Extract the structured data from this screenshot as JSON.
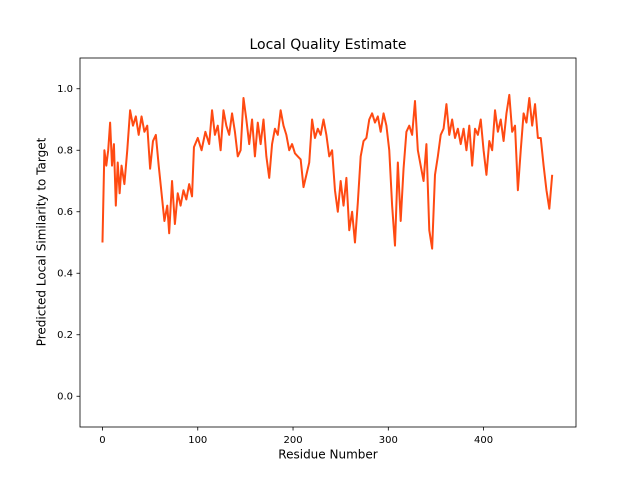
{
  "chart_data": {
    "type": "line",
    "title": "Local Quality Estimate",
    "xlabel": "Residue Number",
    "ylabel": "Predicted Local Similarity to Target",
    "color": "#ff4a12",
    "xlim": [
      -23.6,
      497
    ],
    "ylim": [
      -0.1,
      1.1
    ],
    "xticks": [
      0,
      100,
      200,
      300,
      400
    ],
    "yticks": [
      {
        "value": 0,
        "label": "0.0"
      },
      0.2,
      0.4,
      0.6,
      0.8,
      {
        "value": 1,
        "label": "1.0"
      }
    ],
    "x": [
      0,
      2,
      4,
      6,
      8,
      10,
      12,
      14,
      16,
      18,
      20,
      23,
      26,
      29,
      32,
      35,
      38,
      41,
      44,
      47,
      50,
      53,
      56,
      59,
      62,
      65,
      68,
      70,
      73,
      76,
      79,
      82,
      85,
      88,
      91,
      94,
      96,
      100,
      104,
      108,
      112,
      115,
      118,
      121,
      124,
      127,
      130,
      133,
      136,
      139,
      142,
      145,
      148,
      151,
      154,
      157,
      160,
      163,
      166,
      169,
      172,
      175,
      178,
      181,
      184,
      187,
      190,
      193,
      196,
      199,
      202,
      205,
      208,
      211,
      214,
      217,
      220,
      223,
      226,
      229,
      232,
      235,
      238,
      241,
      244,
      247,
      250,
      253,
      256,
      259,
      262,
      265,
      268,
      271,
      274,
      277,
      280,
      283,
      286,
      289,
      292,
      295,
      298,
      301,
      304,
      307,
      310,
      313,
      316,
      319,
      322,
      325,
      328,
      331,
      334,
      337,
      340,
      343,
      346,
      349,
      352,
      355,
      358,
      361,
      364,
      367,
      370,
      373,
      376,
      379,
      382,
      385,
      388,
      391,
      394,
      397,
      400,
      403,
      406,
      409,
      412,
      415,
      418,
      421,
      424,
      427,
      430,
      433,
      436,
      439,
      442,
      445,
      448,
      451,
      454,
      457,
      460,
      463,
      466,
      469,
      472
    ],
    "values": [
      0.5,
      0.8,
      0.75,
      0.8,
      0.89,
      0.75,
      0.82,
      0.62,
      0.76,
      0.66,
      0.75,
      0.69,
      0.8,
      0.93,
      0.88,
      0.91,
      0.85,
      0.91,
      0.86,
      0.88,
      0.74,
      0.83,
      0.85,
      0.75,
      0.66,
      0.57,
      0.62,
      0.53,
      0.7,
      0.56,
      0.66,
      0.62,
      0.67,
      0.64,
      0.69,
      0.65,
      0.81,
      0.84,
      0.8,
      0.86,
      0.82,
      0.93,
      0.85,
      0.88,
      0.8,
      0.93,
      0.88,
      0.85,
      0.92,
      0.86,
      0.78,
      0.8,
      0.97,
      0.9,
      0.82,
      0.9,
      0.78,
      0.89,
      0.82,
      0.9,
      0.78,
      0.71,
      0.82,
      0.87,
      0.85,
      0.93,
      0.88,
      0.85,
      0.8,
      0.82,
      0.79,
      0.78,
      0.77,
      0.68,
      0.72,
      0.76,
      0.9,
      0.84,
      0.87,
      0.85,
      0.9,
      0.85,
      0.78,
      0.8,
      0.67,
      0.6,
      0.7,
      0.62,
      0.71,
      0.54,
      0.6,
      0.5,
      0.63,
      0.78,
      0.83,
      0.84,
      0.9,
      0.92,
      0.89,
      0.91,
      0.86,
      0.92,
      0.88,
      0.8,
      0.62,
      0.49,
      0.76,
      0.57,
      0.74,
      0.86,
      0.88,
      0.85,
      0.96,
      0.8,
      0.75,
      0.7,
      0.82,
      0.54,
      0.48,
      0.72,
      0.78,
      0.85,
      0.87,
      0.95,
      0.85,
      0.9,
      0.84,
      0.87,
      0.82,
      0.87,
      0.8,
      0.88,
      0.75,
      0.87,
      0.85,
      0.9,
      0.8,
      0.72,
      0.83,
      0.8,
      0.93,
      0.86,
      0.9,
      0.83,
      0.92,
      0.98,
      0.86,
      0.88,
      0.67,
      0.8,
      0.92,
      0.89,
      0.97,
      0.88,
      0.95,
      0.84,
      0.84,
      0.75,
      0.67,
      0.61,
      0.72
    ]
  }
}
